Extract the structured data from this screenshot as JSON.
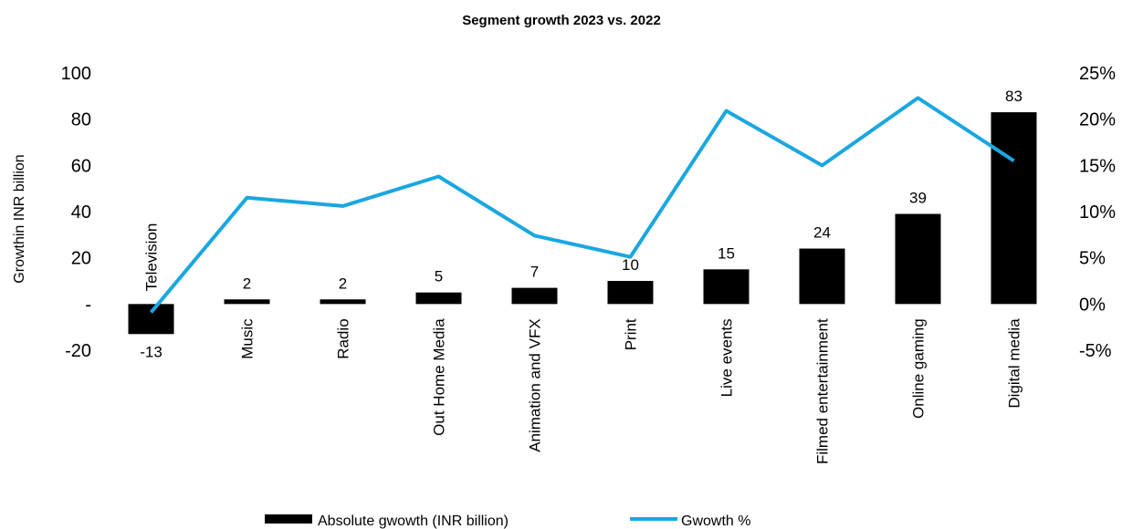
{
  "chart_data": {
    "type": "bar_line",
    "title": "Segment growth 2023 vs. 2022",
    "ylabel": "Growthin INR billion",
    "categories": [
      "Television",
      "Music",
      "Radio",
      "Out Home Media",
      "Animation and VFX",
      "Print",
      "Live events",
      "Filmed entertainment",
      "Online gaming",
      "Digital media"
    ],
    "series": [
      {
        "name": "Absolute gwowth (INR billion)",
        "color": "#000000",
        "type": "bar",
        "axis": "y",
        "values": [
          -13,
          2,
          2,
          5,
          7,
          10,
          15,
          24,
          39,
          83
        ]
      },
      {
        "name": "Gwowth %",
        "color": "#1aa7e0",
        "type": "line",
        "axis": "y2",
        "values": [
          -0.9,
          11.5,
          10.6,
          13.8,
          7.4,
          5.1,
          20.9,
          15.0,
          22.3,
          15.5
        ]
      }
    ],
    "ylim": [
      -20,
      100
    ],
    "yticks": [
      -20,
      {
        "value": 0,
        "label": "-"
      },
      20,
      40,
      60,
      80,
      100
    ],
    "y2lim": [
      -5,
      25
    ],
    "y2ticks": [
      {
        "value": -5,
        "label": "-5%"
      },
      {
        "value": 0,
        "label": "0%"
      },
      {
        "value": 5,
        "label": "5%"
      },
      {
        "value": 10,
        "label": "10%"
      },
      {
        "value": 15,
        "label": "15%"
      },
      {
        "value": 20,
        "label": "20%"
      },
      {
        "value": 25,
        "label": "25%"
      }
    ],
    "legend": "bottom"
  }
}
